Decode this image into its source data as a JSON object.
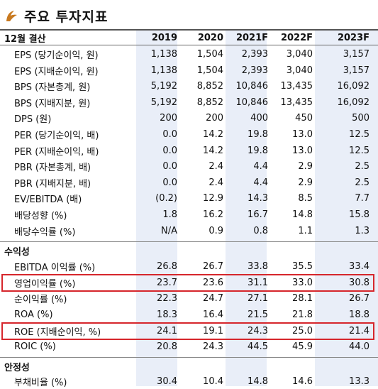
{
  "title": "주요 투자지표",
  "header": {
    "label": "12월 결산",
    "years": [
      "2019",
      "2020",
      "2021F",
      "2022F",
      "2023F"
    ]
  },
  "rows": [
    {
      "label": "EPS (당기순이익, 원)",
      "values": [
        "1,138",
        "1,504",
        "2,393",
        "3,040",
        "3,157"
      ]
    },
    {
      "label": "EPS (지배순이익, 원)",
      "values": [
        "1,138",
        "1,504",
        "2,393",
        "3,040",
        "3,157"
      ]
    },
    {
      "label": "BPS (자본총계, 원)",
      "values": [
        "5,192",
        "8,852",
        "10,846",
        "13,435",
        "16,092"
      ]
    },
    {
      "label": "BPS (지배지분, 원)",
      "values": [
        "5,192",
        "8,852",
        "10,846",
        "13,435",
        "16,092"
      ]
    },
    {
      "label": "DPS (원)",
      "values": [
        "200",
        "200",
        "400",
        "450",
        "500"
      ]
    },
    {
      "label": "PER (당기순이익, 배)",
      "values": [
        "0.0",
        "14.2",
        "19.8",
        "13.0",
        "12.5"
      ]
    },
    {
      "label": "PER (지배순이익, 배)",
      "values": [
        "0.0",
        "14.2",
        "19.8",
        "13.0",
        "12.5"
      ]
    },
    {
      "label": "PBR (자본총계, 배)",
      "values": [
        "0.0",
        "2.4",
        "4.4",
        "2.9",
        "2.5"
      ]
    },
    {
      "label": "PBR (지배지분, 배)",
      "values": [
        "0.0",
        "2.4",
        "4.4",
        "2.9",
        "2.5"
      ]
    },
    {
      "label": "EV/EBITDA (배)",
      "values": [
        "(0.2)",
        "12.9",
        "14.3",
        "8.5",
        "7.7"
      ]
    },
    {
      "label": "배당성향 (%)",
      "values": [
        "1.8",
        "16.2",
        "16.7",
        "14.8",
        "15.8"
      ]
    },
    {
      "label": "배당수익률 (%)",
      "values": [
        "N/A",
        "0.9",
        "0.8",
        "1.1",
        "1.3"
      ]
    }
  ],
  "profitability": {
    "section": "수익성",
    "rows": [
      {
        "label": "EBITDA 이익률 (%)",
        "values": [
          "26.8",
          "26.7",
          "33.8",
          "35.5",
          "33.4"
        ]
      },
      {
        "label": "영업이익률 (%)",
        "values": [
          "23.7",
          "23.6",
          "31.1",
          "33.0",
          "30.8"
        ]
      },
      {
        "label": "순이익률 (%)",
        "values": [
          "22.3",
          "24.7",
          "27.1",
          "28.1",
          "26.7"
        ]
      },
      {
        "label": "ROA (%)",
        "values": [
          "18.3",
          "16.4",
          "21.5",
          "21.8",
          "18.8"
        ]
      },
      {
        "label": "ROE (지배순이익, %)",
        "values": [
          "24.1",
          "19.1",
          "24.3",
          "25.0",
          "21.4"
        ]
      },
      {
        "label": "ROIC (%)",
        "values": [
          "20.8",
          "24.3",
          "44.5",
          "45.9",
          "44.0"
        ]
      }
    ]
  },
  "stability": {
    "section": "안정성",
    "rows": [
      {
        "label": "부채비율 (%)",
        "values": [
          "30.4",
          "10.4",
          "14.8",
          "14.6",
          "13.3"
        ]
      }
    ]
  },
  "colors": {
    "highlight": "#d6262c",
    "column_shade": "#e9eef8",
    "icon": "#c8791f"
  }
}
